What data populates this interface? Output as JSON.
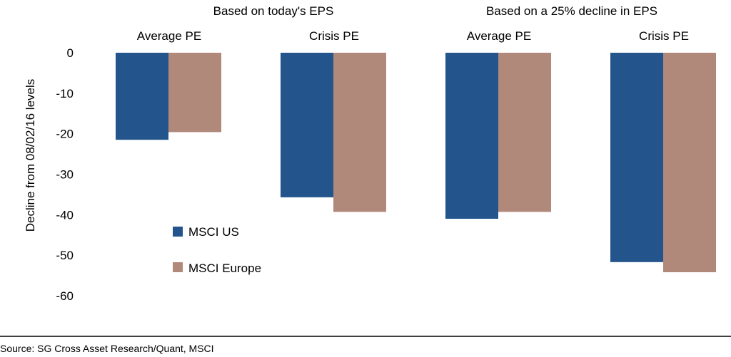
{
  "chart_data": {
    "type": "bar",
    "group_headers": [
      "Based on today's EPS",
      "Based on a 25% decline in EPS"
    ],
    "categories": [
      "Average PE",
      "Crisis PE",
      "Average PE",
      "Crisis PE"
    ],
    "series": [
      {
        "name": "MSCI US",
        "values": [
          -21.5,
          -35.7,
          -41.0,
          -51.7
        ],
        "color": "#24548c"
      },
      {
        "name": "MSCI Europe",
        "values": [
          -19.6,
          -39.3,
          -39.3,
          -54.2
        ],
        "color": "#b0897a"
      }
    ],
    "ylabel": "Decline from 08/02/16 levels",
    "ylim": [
      -60,
      0
    ],
    "yticks": [
      0,
      -10,
      -20,
      -30,
      -40,
      -50,
      -60
    ],
    "legend_position": "lower-left",
    "grid": false
  },
  "source_note": "Source: SG Cross Asset Research/Quant, MSCI",
  "colors": {
    "footer_line": "#000000"
  }
}
